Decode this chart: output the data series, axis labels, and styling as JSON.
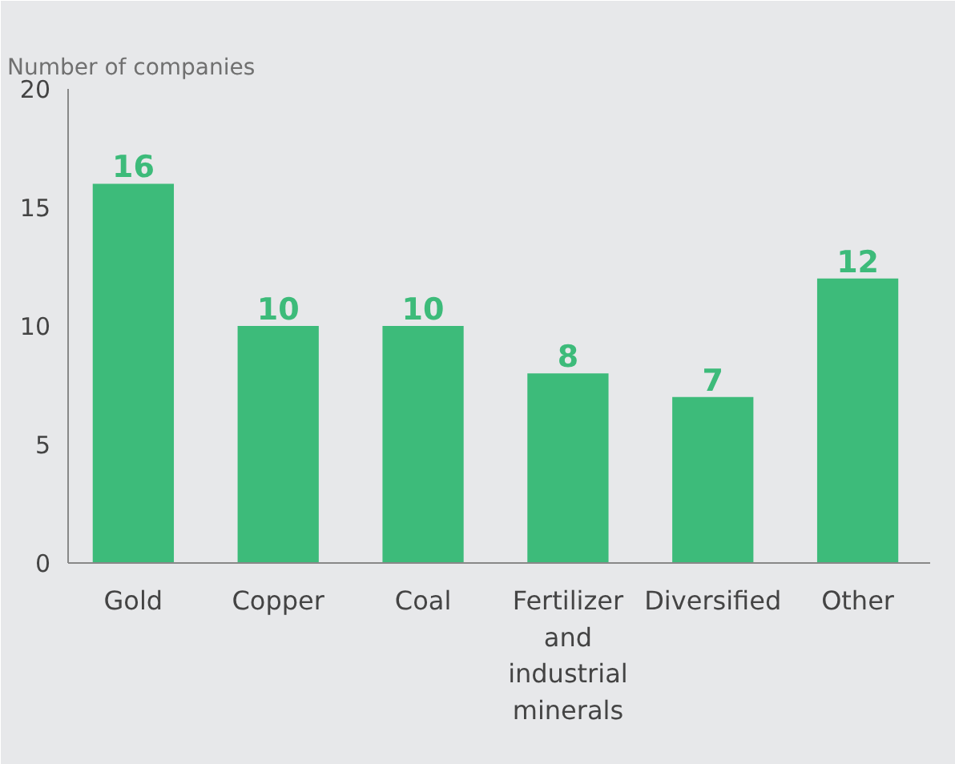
{
  "chart_data": {
    "type": "bar",
    "ylabel": "Number of companies",
    "categories": [
      "Gold",
      "Copper",
      "Coal",
      "Fertilizer and industrial minerals",
      "Diversified",
      "Other"
    ],
    "values": [
      16,
      10,
      10,
      8,
      7,
      12
    ],
    "color": "#3dbb7a",
    "ylim": [
      0,
      20
    ],
    "yticks": [
      0,
      5,
      10,
      15,
      20
    ],
    "data_labels": true
  }
}
